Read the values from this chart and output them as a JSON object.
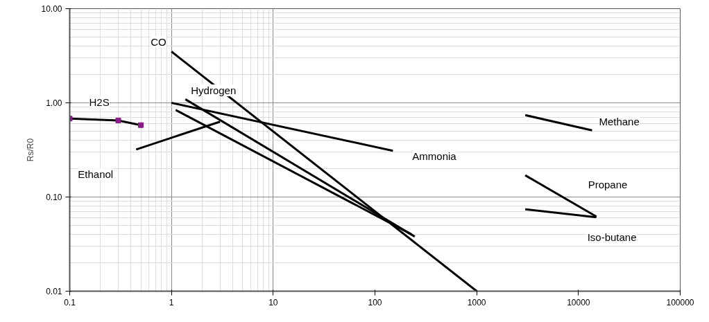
{
  "chart_data": {
    "type": "line",
    "ylabel": "Rs/R0",
    "log": "xy",
    "grid": true,
    "marker": "none",
    "line_style": "solid",
    "xlim": [
      0.1,
      100000
    ],
    "xticks": [
      0.1,
      1,
      10,
      100,
      1000,
      10000,
      100000
    ],
    "ylim": [
      0.01,
      10
    ],
    "yticks": [
      {
        "value": 0.01,
        "label": "0.01"
      },
      {
        "value": 0.1,
        "label": "0.10"
      },
      {
        "value": 1,
        "label": "1.00"
      },
      {
        "value": 10,
        "label": "10.00"
      }
    ],
    "series": [
      {
        "name": "CO",
        "color": "#000000",
        "x": [
          1,
          1000
        ],
        "values": [
          3.5,
          0.01
        ]
      },
      {
        "name": "H2S",
        "color": "#000000",
        "marker": "square",
        "colors": [
          "#8b1a8b",
          "#8b1a8b",
          "#8b1a8b"
        ],
        "x": [
          0.1,
          0.3,
          0.5
        ],
        "values": [
          0.68,
          0.65,
          0.58
        ]
      },
      {
        "name": "Ethanol",
        "color": "#000000",
        "x": [
          0.45,
          3.0
        ],
        "values": [
          0.32,
          0.63
        ]
      },
      {
        "name": "Hydrogen",
        "color": "#000000",
        "x": [
          1.37,
          246
        ],
        "values": [
          1.09,
          0.038
        ]
      },
      {
        "color": "#000000",
        "x": [
          1.1,
          230
        ],
        "values": [
          0.84,
          0.04
        ]
      },
      {
        "name": "Ammonia",
        "color": "#000000",
        "x": [
          1,
          150
        ],
        "values": [
          1.0,
          0.31
        ]
      },
      {
        "name": "Methane",
        "color": "#000000",
        "x": [
          3000,
          13600
        ],
        "values": [
          0.74,
          0.51
        ]
      },
      {
        "name": "Propane",
        "color": "#000000",
        "x": [
          3000,
          15000
        ],
        "values": [
          0.17,
          0.062
        ]
      },
      {
        "name": "Iso-butane",
        "color": "#000000",
        "x": [
          3000,
          15000
        ],
        "values": [
          0.074,
          0.061
        ]
      }
    ]
  }
}
